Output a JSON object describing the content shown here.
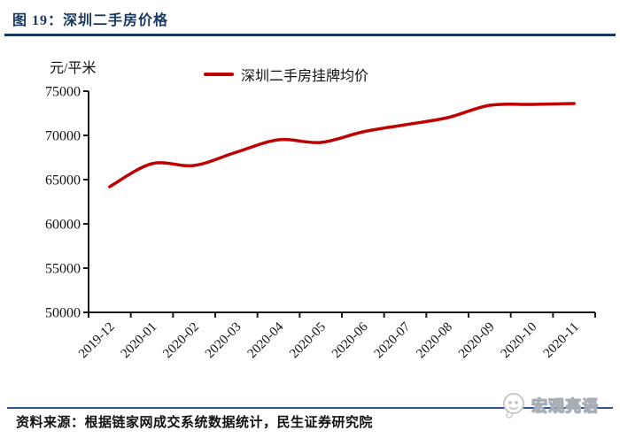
{
  "header": {
    "title": "图 19：深圳二手房价格"
  },
  "chart_data": {
    "type": "line",
    "unit_label": "元/平米",
    "legend": [
      "深圳二手房挂牌均价"
    ],
    "legend_position": "top-center",
    "categories": [
      "2019-12",
      "2020-01",
      "2020-02",
      "2020-03",
      "2020-04",
      "2020-05",
      "2020-06",
      "2020-07",
      "2020-08",
      "2020-09",
      "2020-10",
      "2020-11"
    ],
    "series": [
      {
        "name": "深圳二手房挂牌均价",
        "values": [
          64200,
          66800,
          66600,
          68100,
          69500,
          69200,
          70400,
          71200,
          72000,
          73400,
          73500,
          73600
        ]
      }
    ],
    "ylim": [
      50000,
      75000
    ],
    "ytick_step": 5000,
    "yticks": [
      50000,
      55000,
      60000,
      65000,
      70000,
      75000
    ],
    "grid": false,
    "line_color": "#c00000",
    "axis_color": "#1a1a1a"
  },
  "footer": {
    "source": "资料来源：根据链家网成交系统数据统计，民生证券研究院",
    "logo_text": "宏观亮语"
  },
  "colors": {
    "title_navy": "#17375e",
    "footer_blue": "#2f5597",
    "series_red": "#c00000"
  }
}
